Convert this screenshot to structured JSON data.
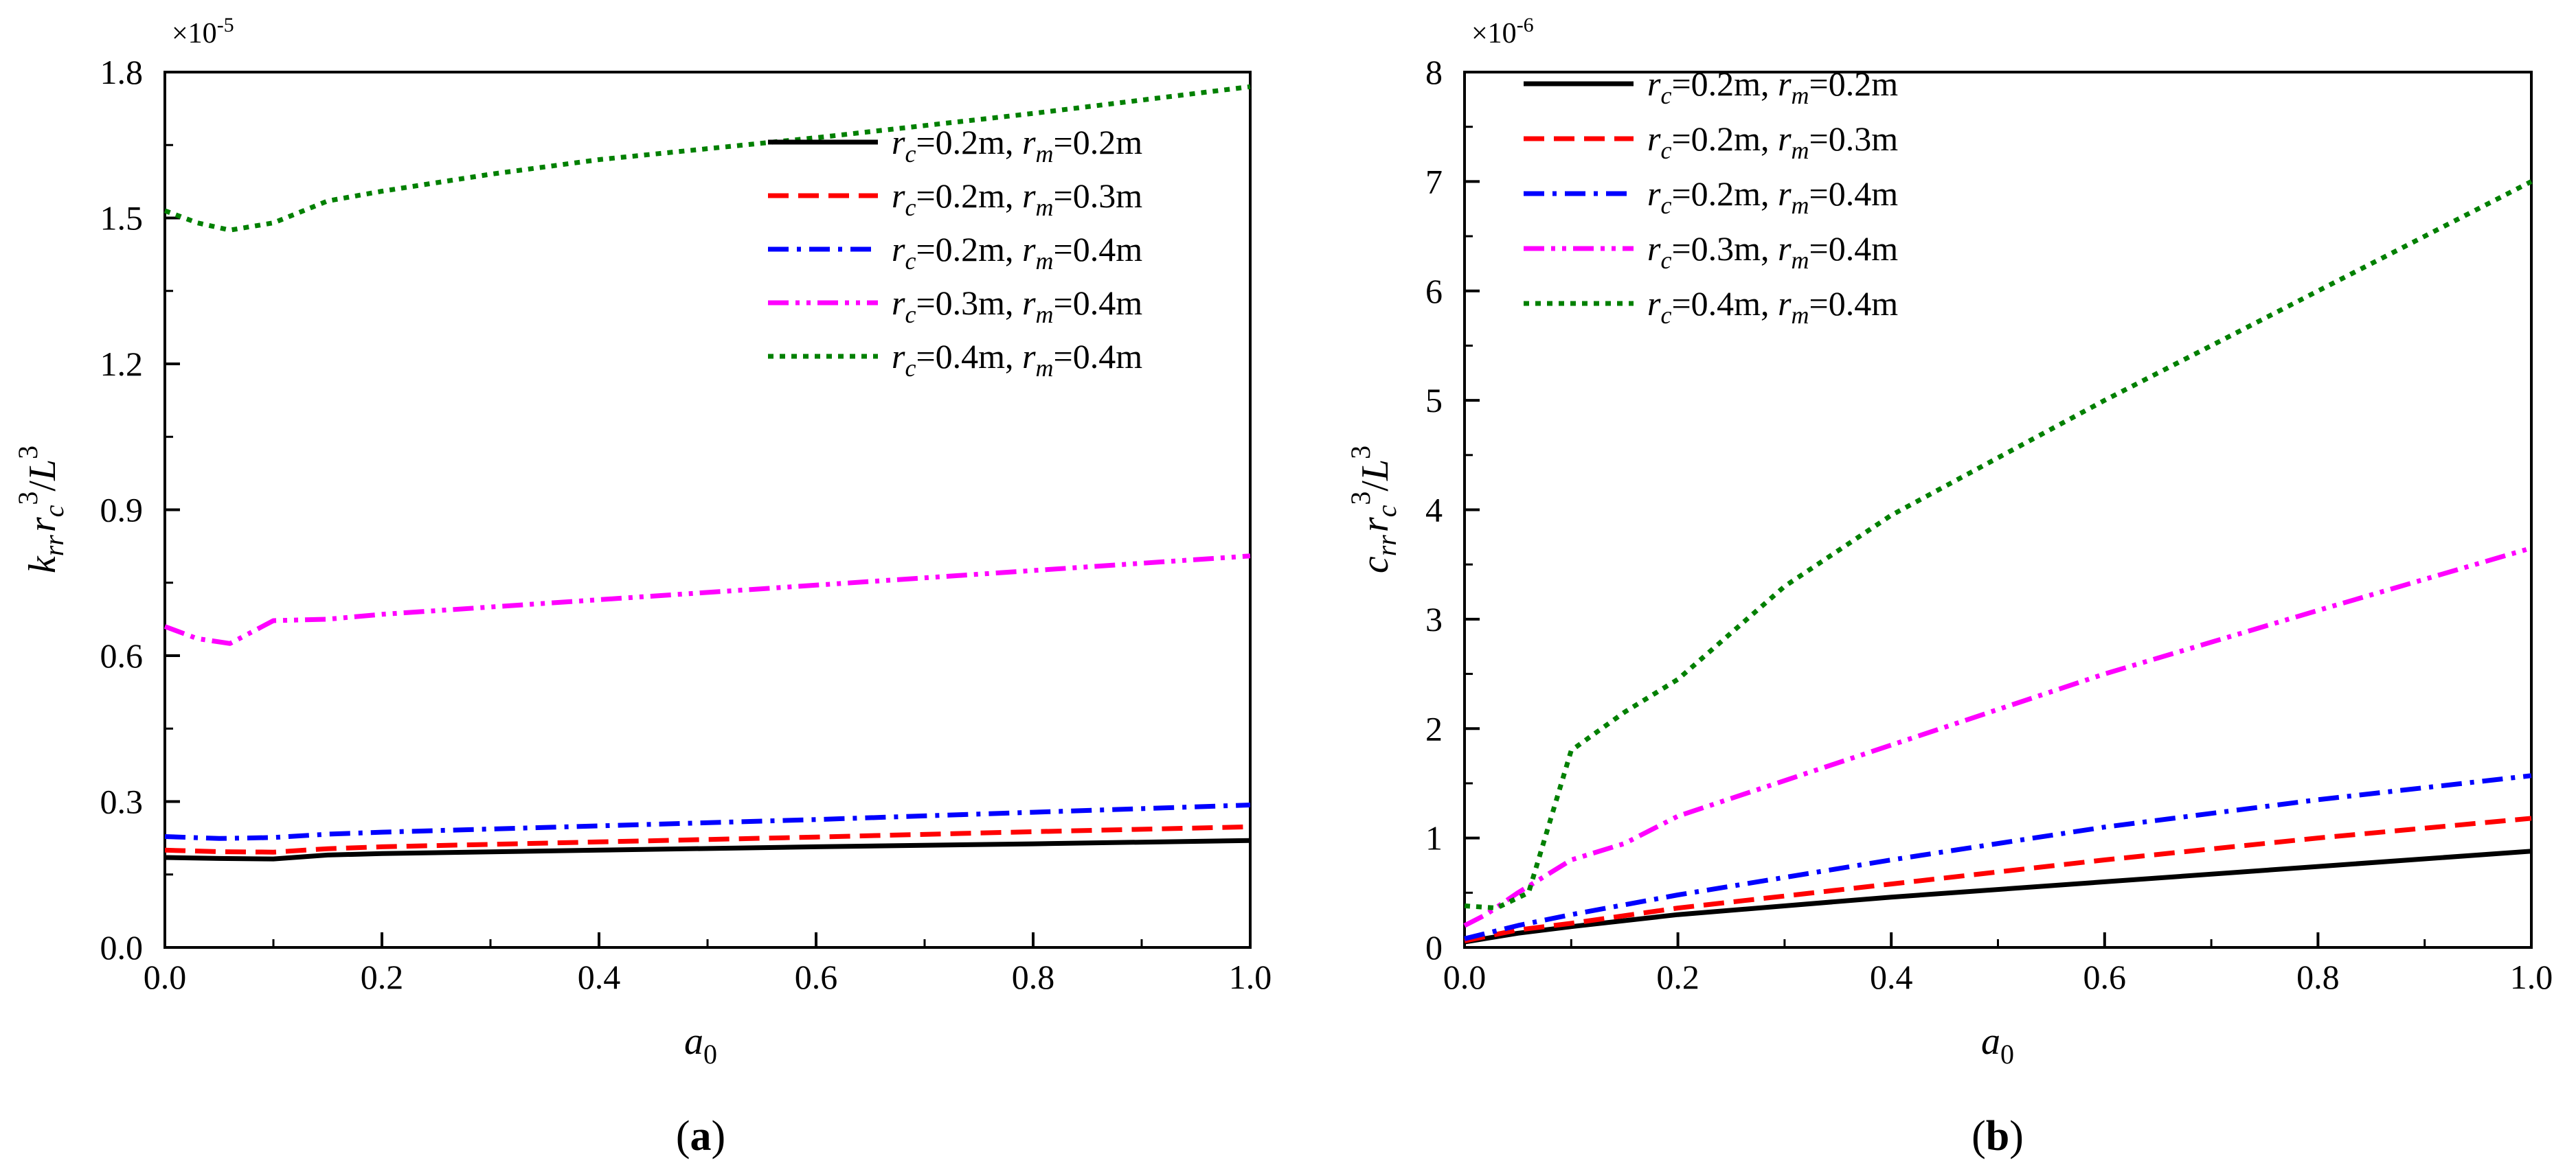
{
  "chart_data": [
    {
      "type": "line",
      "panel_label": "(a)",
      "panel_letter": "a",
      "multiplier_base": "×10",
      "multiplier_exp": "-5",
      "xlabel": {
        "main": "a",
        "sub": "0"
      },
      "ylabel": {
        "k": "k",
        "k_sub": "rr",
        "r": "r",
        "r_sub": "c",
        "r_exp": "3",
        "slash": "/",
        "L": "L",
        "L_exp": "3"
      },
      "xlim": [
        0,
        1.0
      ],
      "ylim": [
        0,
        1.8
      ],
      "xticks": [
        0.0,
        0.2,
        0.4,
        0.6,
        0.8,
        1.0
      ],
      "xtick_labels": [
        "0.0",
        "0.2",
        "0.4",
        "0.6",
        "0.8",
        "1.0"
      ],
      "yticks": [
        0.0,
        0.3,
        0.6,
        0.9,
        1.2,
        1.5,
        1.8
      ],
      "ytick_labels": [
        "0.0",
        "0.3",
        "0.6",
        "0.9",
        "1.2",
        "1.5",
        "1.8"
      ],
      "legend_position": "upper-right",
      "series": [
        {
          "rc": "0.2",
          "rm": "0.2",
          "color": "#000000",
          "dash": "solid",
          "x": [
            0,
            0.05,
            0.1,
            0.15,
            0.2,
            0.4,
            0.6,
            0.8,
            1.0
          ],
          "y": [
            0.185,
            0.183,
            0.182,
            0.19,
            0.193,
            0.2,
            0.207,
            0.213,
            0.22
          ]
        },
        {
          "rc": "0.2",
          "rm": "0.3",
          "color": "#ff0000",
          "dash": "dashed",
          "x": [
            0,
            0.05,
            0.1,
            0.15,
            0.2,
            0.4,
            0.6,
            0.8,
            1.0
          ],
          "y": [
            0.2,
            0.197,
            0.196,
            0.203,
            0.207,
            0.217,
            0.227,
            0.238,
            0.248
          ]
        },
        {
          "rc": "0.2",
          "rm": "0.4",
          "color": "#0000ff",
          "dash": "dashdot",
          "x": [
            0,
            0.05,
            0.1,
            0.15,
            0.2,
            0.4,
            0.6,
            0.8,
            1.0
          ],
          "y": [
            0.228,
            0.224,
            0.226,
            0.233,
            0.237,
            0.25,
            0.263,
            0.278,
            0.293
          ]
        },
        {
          "rc": "0.3",
          "rm": "0.4",
          "color": "#ff00ff",
          "dash": "dashdotdot",
          "x": [
            0,
            0.03,
            0.06,
            0.1,
            0.15,
            0.2,
            0.4,
            0.6,
            0.8,
            1.0
          ],
          "y": [
            0.66,
            0.635,
            0.625,
            0.672,
            0.675,
            0.685,
            0.715,
            0.745,
            0.775,
            0.805
          ]
        },
        {
          "rc": "0.4",
          "rm": "0.4",
          "color": "#008000",
          "dash": "dotted",
          "x": [
            0,
            0.03,
            0.06,
            0.1,
            0.15,
            0.2,
            0.3,
            0.4,
            0.6,
            0.8,
            1.0
          ],
          "y": [
            1.515,
            1.49,
            1.475,
            1.49,
            1.535,
            1.555,
            1.59,
            1.62,
            1.665,
            1.715,
            1.77
          ]
        }
      ]
    },
    {
      "type": "line",
      "panel_label": "(b)",
      "panel_letter": "b",
      "multiplier_base": "×10",
      "multiplier_exp": "-6",
      "xlabel": {
        "main": "a",
        "sub": "0"
      },
      "ylabel": {
        "k": "c",
        "k_sub": "rr",
        "r": "r",
        "r_sub": "c",
        "r_exp": "3",
        "slash": "/",
        "L": "L",
        "L_exp": "3"
      },
      "xlim": [
        0,
        1.0
      ],
      "ylim": [
        0,
        8
      ],
      "xticks": [
        0.0,
        0.2,
        0.4,
        0.6,
        0.8,
        1.0
      ],
      "xtick_labels": [
        "0.0",
        "0.2",
        "0.4",
        "0.6",
        "0.8",
        "1.0"
      ],
      "yticks": [
        0,
        1,
        2,
        3,
        4,
        5,
        6,
        7,
        8
      ],
      "ytick_labels": [
        "0",
        "1",
        "2",
        "3",
        "4",
        "5",
        "6",
        "7",
        "8"
      ],
      "legend_position": "upper-left",
      "series": [
        {
          "rc": "0.2",
          "rm": "0.2",
          "color": "#000000",
          "dash": "solid",
          "x": [
            0,
            0.05,
            0.1,
            0.2,
            0.4,
            0.6,
            0.8,
            1.0
          ],
          "y": [
            0.05,
            0.13,
            0.19,
            0.3,
            0.46,
            0.6,
            0.74,
            0.88
          ]
        },
        {
          "rc": "0.2",
          "rm": "0.3",
          "color": "#ff0000",
          "dash": "dashed",
          "x": [
            0,
            0.05,
            0.1,
            0.2,
            0.4,
            0.6,
            0.8,
            1.0
          ],
          "y": [
            0.06,
            0.16,
            0.22,
            0.36,
            0.58,
            0.8,
            1.0,
            1.18
          ]
        },
        {
          "rc": "0.2",
          "rm": "0.4",
          "color": "#0000ff",
          "dash": "dashdot",
          "x": [
            0,
            0.05,
            0.1,
            0.2,
            0.4,
            0.6,
            0.8,
            1.0
          ],
          "y": [
            0.08,
            0.2,
            0.3,
            0.48,
            0.8,
            1.1,
            1.35,
            1.57
          ]
        },
        {
          "rc": "0.3",
          "rm": "0.4",
          "color": "#ff00ff",
          "dash": "dashdotdot",
          "x": [
            0,
            0.02,
            0.05,
            0.1,
            0.15,
            0.2,
            0.4,
            0.6,
            0.8,
            1.0
          ],
          "y": [
            0.2,
            0.3,
            0.5,
            0.8,
            0.95,
            1.2,
            1.85,
            2.5,
            3.08,
            3.65
          ]
        },
        {
          "rc": "0.4",
          "rm": "0.4",
          "color": "#008000",
          "dash": "dotted",
          "x": [
            0,
            0.03,
            0.06,
            0.1,
            0.15,
            0.2,
            0.3,
            0.4,
            0.6,
            0.8,
            1.0
          ],
          "y": [
            0.38,
            0.36,
            0.5,
            1.8,
            2.15,
            2.45,
            3.3,
            3.95,
            5.0,
            6.0,
            7.0
          ]
        }
      ]
    }
  ]
}
